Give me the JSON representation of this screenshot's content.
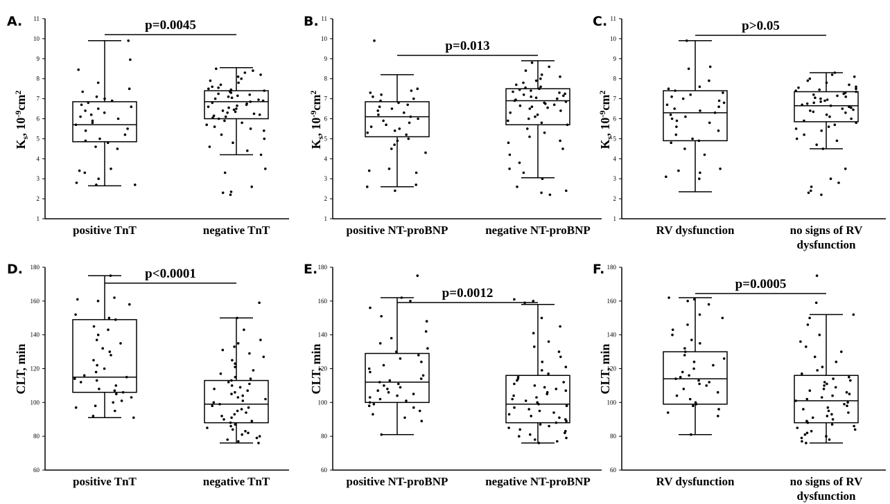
{
  "chart_data": [
    {
      "type": "box",
      "panel": "A.",
      "ylabel": "K",
      "ylabel_sub": "s",
      "ylabel_rest": ", 10",
      "ylabel_sup": "-9",
      "ylabel_unit": "cm",
      "ylabel_unit_sup": "2",
      "ylim": [
        1,
        11
      ],
      "yticks": [
        1,
        2,
        3,
        4,
        5,
        6,
        7,
        8,
        9,
        10,
        11
      ],
      "categories": [
        {
          "label_lines": [
            "positive TnT"
          ],
          "whisker_low": 2.65,
          "q1": 4.85,
          "median": 5.7,
          "q3": 6.85,
          "whisker_high": 9.9,
          "points": [
            9.9,
            8.95,
            8.45,
            7.8,
            7.5,
            7.35,
            7.1,
            7.0,
            6.9,
            6.8,
            6.7,
            6.6,
            6.5,
            6.4,
            6.3,
            6.2,
            6.1,
            6.0,
            5.9,
            5.8,
            5.7,
            5.5,
            5.4,
            5.2,
            5.0,
            4.9,
            4.8,
            4.6,
            4.5,
            3.5,
            3.4,
            3.3,
            3.0,
            2.8,
            2.7,
            2.7
          ]
        },
        {
          "label_lines": [
            "negative TnT"
          ],
          "whisker_low": 4.2,
          "q1": 6.0,
          "median": 6.85,
          "q3": 7.4,
          "whisker_high": 8.55,
          "points": [
            8.5,
            8.4,
            8.3,
            8.2,
            8.1,
            8.0,
            7.9,
            7.8,
            7.7,
            7.6,
            7.55,
            7.5,
            7.45,
            7.4,
            7.35,
            7.3,
            7.25,
            7.2,
            7.15,
            7.1,
            7.05,
            7.0,
            6.95,
            6.9,
            6.85,
            6.8,
            6.75,
            6.7,
            6.65,
            6.6,
            6.55,
            6.5,
            6.45,
            6.4,
            6.35,
            6.3,
            6.25,
            6.2,
            6.15,
            6.1,
            6.05,
            6.0,
            5.9,
            5.8,
            5.7,
            5.6,
            5.5,
            5.4,
            5.2,
            5.0,
            4.8,
            4.6,
            4.4,
            4.2,
            3.5,
            3.3,
            2.6,
            2.35,
            2.3,
            2.2
          ]
        }
      ],
      "pvalue": "p=0.0045"
    },
    {
      "type": "box",
      "panel": "B.",
      "ylabel": "K",
      "ylabel_sub": "s",
      "ylabel_rest": ", 10",
      "ylabel_sup": "-9",
      "ylabel_unit": "cm",
      "ylabel_unit_sup": "2",
      "ylim": [
        1,
        11
      ],
      "yticks": [
        1,
        2,
        3,
        4,
        5,
        6,
        7,
        8,
        9,
        10,
        11
      ],
      "categories": [
        {
          "label_lines": [
            "positive NT-proBNP"
          ],
          "whisker_low": 2.6,
          "q1": 5.1,
          "median": 6.1,
          "q3": 6.85,
          "whisker_high": 8.2,
          "points": [
            9.9,
            7.5,
            7.4,
            7.3,
            7.2,
            7.1,
            7.0,
            6.9,
            6.8,
            6.7,
            6.6,
            6.5,
            6.4,
            6.3,
            6.2,
            6.1,
            6.0,
            5.9,
            5.8,
            5.7,
            5.6,
            5.5,
            5.4,
            5.3,
            5.2,
            5.0,
            4.9,
            4.7,
            4.5,
            4.3,
            3.5,
            3.4,
            3.3,
            2.7,
            2.6,
            2.4
          ]
        },
        {
          "label_lines": [
            "negative NT-proBNP"
          ],
          "whisker_low": 3.05,
          "q1": 5.7,
          "median": 6.9,
          "q3": 7.5,
          "whisker_high": 8.9,
          "points": [
            8.8,
            8.6,
            8.4,
            8.2,
            8.1,
            8.0,
            7.9,
            7.8,
            7.7,
            7.6,
            7.55,
            7.5,
            7.45,
            7.4,
            7.35,
            7.3,
            7.25,
            7.2,
            7.15,
            7.1,
            7.05,
            7.0,
            6.95,
            6.9,
            6.85,
            6.8,
            6.75,
            6.7,
            6.65,
            6.6,
            6.55,
            6.5,
            6.4,
            6.3,
            6.2,
            6.1,
            6.0,
            5.9,
            5.8,
            5.7,
            5.5,
            5.3,
            5.1,
            4.9,
            4.8,
            4.5,
            4.2,
            3.8,
            3.5,
            3.3,
            3.0,
            2.6,
            2.4,
            2.3,
            2.2
          ]
        }
      ],
      "pvalue": "p=0.013"
    },
    {
      "type": "box",
      "panel": "C.",
      "ylabel": "K",
      "ylabel_sub": "s",
      "ylabel_rest": ", 10",
      "ylabel_sup": "-9",
      "ylabel_unit": "cm",
      "ylabel_unit_sup": "2",
      "ylim": [
        1,
        11
      ],
      "yticks": [
        1,
        2,
        3,
        4,
        5,
        6,
        7,
        8,
        9,
        10,
        11
      ],
      "categories": [
        {
          "label_lines": [
            "RV dysfunction"
          ],
          "whisker_low": 2.35,
          "q1": 4.9,
          "median": 6.3,
          "q3": 7.4,
          "whisker_high": 9.9,
          "points": [
            9.9,
            8.6,
            8.5,
            7.9,
            7.6,
            7.5,
            7.4,
            7.3,
            7.2,
            7.1,
            7.0,
            6.9,
            6.8,
            6.7,
            6.6,
            6.5,
            6.4,
            6.3,
            6.2,
            6.1,
            6.0,
            5.9,
            5.8,
            5.6,
            5.4,
            5.2,
            5.0,
            4.9,
            4.8,
            4.5,
            4.2,
            3.5,
            3.4,
            3.3,
            3.1,
            3.0
          ]
        },
        {
          "label_lines": [
            "no signs of RV",
            "dysfunction"
          ],
          "whisker_low": 4.5,
          "q1": 5.85,
          "median": 6.65,
          "q3": 7.35,
          "whisker_high": 8.3,
          "points": [
            8.3,
            8.2,
            8.1,
            8.0,
            7.9,
            7.8,
            7.7,
            7.6,
            7.55,
            7.5,
            7.45,
            7.4,
            7.35,
            7.3,
            7.25,
            7.2,
            7.15,
            7.1,
            7.05,
            7.0,
            6.95,
            6.9,
            6.85,
            6.8,
            6.75,
            6.7,
            6.65,
            6.6,
            6.55,
            6.5,
            6.45,
            6.4,
            6.35,
            6.3,
            6.2,
            6.1,
            6.0,
            5.9,
            5.8,
            5.7,
            5.6,
            5.5,
            5.4,
            5.2,
            5.0,
            4.9,
            4.7,
            4.5,
            3.5,
            3.0,
            2.8,
            2.6,
            2.4,
            2.3,
            2.2
          ]
        }
      ],
      "pvalue": "p>0.05"
    },
    {
      "type": "box",
      "panel": "D.",
      "ylabel": "CLT, min",
      "ylim": [
        60,
        180
      ],
      "yticks": [
        60,
        80,
        100,
        120,
        140,
        160,
        180
      ],
      "categories": [
        {
          "label_lines": [
            "positive TnT"
          ],
          "whisker_low": 91,
          "q1": 106,
          "median": 115,
          "q3": 149,
          "whisker_high": 175,
          "points": [
            175,
            162,
            161,
            160,
            158,
            152,
            150,
            149,
            145,
            143,
            140,
            137,
            135,
            132,
            130,
            128,
            125,
            122,
            120,
            118,
            116,
            115,
            114,
            113,
            112,
            110,
            108,
            107,
            106,
            105,
            103,
            101,
            100,
            98,
            97,
            95,
            92,
            91
          ]
        },
        {
          "label_lines": [
            "negative TnT"
          ],
          "whisker_low": 76,
          "q1": 88,
          "median": 99,
          "q3": 113,
          "whisker_high": 150,
          "points": [
            159,
            150,
            143,
            137,
            135,
            133,
            131,
            129,
            127,
            125,
            123,
            121,
            119,
            117,
            115,
            114,
            113,
            112,
            111,
            110,
            109,
            108,
            107,
            106,
            105,
            104,
            103,
            102,
            101,
            100,
            99,
            98,
            97,
            96,
            95,
            94,
            93,
            92,
            91,
            90,
            89,
            88,
            87,
            86,
            85,
            84,
            83,
            82,
            81,
            80,
            79,
            78,
            77,
            76
          ]
        }
      ],
      "pvalue": "p<0.0001"
    },
    {
      "type": "box",
      "panel": "E.",
      "ylabel": "CLT, min",
      "ylim": [
        60,
        180
      ],
      "yticks": [
        60,
        80,
        100,
        120,
        140,
        160,
        180
      ],
      "categories": [
        {
          "label_lines": [
            "positive NT-proBNP"
          ],
          "whisker_low": 81,
          "q1": 100,
          "median": 112,
          "q3": 129,
          "whisker_high": 162,
          "points": [
            175,
            162,
            160,
            156,
            151,
            148,
            142,
            138,
            135,
            132,
            130,
            128,
            126,
            124,
            122,
            120,
            118,
            116,
            114,
            113,
            112,
            111,
            110,
            109,
            108,
            107,
            106,
            105,
            104,
            103,
            102,
            101,
            100,
            99,
            98,
            97,
            95,
            93,
            91,
            89,
            81
          ]
        },
        {
          "label_lines": [
            "negative NT-proBNP"
          ],
          "whisker_low": 76,
          "q1": 88,
          "median": 99,
          "q3": 116,
          "whisker_high": 158,
          "points": [
            161,
            160,
            159,
            150,
            145,
            141,
            136,
            133,
            130,
            127,
            124,
            121,
            119,
            117,
            115,
            114,
            113,
            112,
            111,
            110,
            109,
            108,
            107,
            106,
            105,
            104,
            103,
            102,
            101,
            100,
            99,
            98,
            97,
            96,
            95,
            94,
            93,
            92,
            91,
            90,
            89,
            88,
            87,
            86,
            85,
            84,
            83,
            82,
            81,
            80,
            79,
            78,
            77,
            76
          ]
        }
      ],
      "pvalue": "p=0.0012"
    },
    {
      "type": "box",
      "panel": "F.",
      "ylabel": "CLT, min",
      "ylim": [
        60,
        180
      ],
      "yticks": [
        60,
        80,
        100,
        120,
        140,
        160,
        180
      ],
      "categories": [
        {
          "label_lines": [
            "RV dysfunction"
          ],
          "whisker_low": 81,
          "q1": 99,
          "median": 114,
          "q3": 130,
          "whisker_high": 162,
          "points": [
            162,
            161,
            160,
            158,
            152,
            150,
            146,
            143,
            140,
            137,
            135,
            132,
            130,
            128,
            126,
            124,
            122,
            120,
            118,
            116,
            115,
            114,
            113,
            112,
            111,
            110,
            108,
            106,
            104,
            102,
            100,
            99,
            98,
            96,
            94,
            92,
            81
          ]
        },
        {
          "label_lines": [
            "no signs of RV",
            "dysfunction"
          ],
          "whisker_low": 76,
          "q1": 88,
          "median": 101,
          "q3": 116,
          "whisker_high": 152,
          "points": [
            175,
            159,
            152,
            150,
            146,
            140,
            136,
            133,
            130,
            127,
            124,
            121,
            119,
            117,
            115,
            114,
            113,
            112,
            111,
            110,
            109,
            108,
            107,
            106,
            105,
            104,
            103,
            102,
            101,
            100,
            99,
            98,
            97,
            96,
            95,
            94,
            93,
            92,
            91,
            90,
            89,
            88,
            87,
            86,
            85,
            84,
            83,
            82,
            81,
            80,
            79,
            78,
            77,
            76
          ]
        }
      ],
      "pvalue": "p=0.0005"
    }
  ]
}
